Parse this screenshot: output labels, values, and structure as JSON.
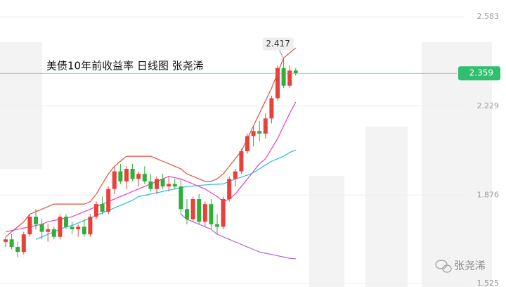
{
  "chart_data": {
    "type": "candlestick",
    "title": "美债10年前收益率  日线图  张尧浠",
    "watermark": "张尧浠",
    "ylim": [
      1.511,
      2.65
    ],
    "yticks": [
      1.525,
      1.876,
      2.229,
      2.583
    ],
    "grid": true,
    "up_color": "#e8413a",
    "down_color": "#2fae3c",
    "last_value": 2.359,
    "last_color": "#2fbf6f",
    "high_value": 2.417,
    "candles": [
      [
        1.69,
        1.71,
        1.67,
        1.7
      ],
      [
        1.7,
        1.72,
        1.66,
        1.67
      ],
      [
        1.67,
        1.69,
        1.63,
        1.65
      ],
      [
        1.65,
        1.73,
        1.64,
        1.72
      ],
      [
        1.72,
        1.8,
        1.71,
        1.79
      ],
      [
        1.79,
        1.82,
        1.74,
        1.76
      ],
      [
        1.76,
        1.78,
        1.7,
        1.73
      ],
      [
        1.73,
        1.76,
        1.69,
        1.74
      ],
      [
        1.74,
        1.75,
        1.7,
        1.71
      ],
      [
        1.71,
        1.8,
        1.7,
        1.79
      ],
      [
        1.79,
        1.8,
        1.74,
        1.75
      ],
      [
        1.75,
        1.77,
        1.72,
        1.74
      ],
      [
        1.74,
        1.76,
        1.71,
        1.75
      ],
      [
        1.75,
        1.78,
        1.71,
        1.72
      ],
      [
        1.72,
        1.8,
        1.71,
        1.79
      ],
      [
        1.79,
        1.85,
        1.78,
        1.84
      ],
      [
        1.84,
        1.87,
        1.8,
        1.81
      ],
      [
        1.81,
        1.91,
        1.8,
        1.9
      ],
      [
        1.9,
        1.99,
        1.88,
        1.97
      ],
      [
        1.97,
        2.0,
        1.92,
        1.93
      ],
      [
        1.93,
        1.99,
        1.9,
        1.98
      ],
      [
        1.98,
        2.0,
        1.93,
        1.94
      ],
      [
        1.94,
        1.97,
        1.91,
        1.96
      ],
      [
        1.96,
        1.99,
        1.92,
        1.93
      ],
      [
        1.93,
        1.96,
        1.89,
        1.9
      ],
      [
        1.9,
        1.95,
        1.88,
        1.94
      ],
      [
        1.94,
        1.96,
        1.9,
        1.91
      ],
      [
        1.91,
        1.95,
        1.89,
        1.92
      ],
      [
        1.92,
        1.94,
        1.9,
        1.91
      ],
      [
        1.91,
        1.94,
        1.8,
        1.82
      ],
      [
        1.82,
        1.86,
        1.76,
        1.78
      ],
      [
        1.78,
        1.87,
        1.77,
        1.86
      ],
      [
        1.86,
        1.88,
        1.76,
        1.77
      ],
      [
        1.77,
        1.85,
        1.75,
        1.84
      ],
      [
        1.84,
        1.86,
        1.74,
        1.76
      ],
      [
        1.76,
        1.8,
        1.72,
        1.75
      ],
      [
        1.75,
        1.87,
        1.74,
        1.86
      ],
      [
        1.86,
        1.95,
        1.85,
        1.94
      ],
      [
        1.94,
        1.98,
        1.91,
        1.97
      ],
      [
        1.97,
        2.06,
        1.96,
        2.05
      ],
      [
        2.05,
        2.12,
        2.04,
        2.11
      ],
      [
        2.11,
        2.15,
        2.07,
        2.13
      ],
      [
        2.13,
        2.17,
        2.09,
        2.12
      ],
      [
        2.12,
        2.2,
        2.1,
        2.18
      ],
      [
        2.18,
        2.27,
        2.16,
        2.26
      ],
      [
        2.26,
        2.39,
        2.25,
        2.38
      ],
      [
        2.38,
        2.417,
        2.3,
        2.31
      ],
      [
        2.31,
        2.39,
        2.3,
        2.37
      ],
      [
        2.37,
        2.38,
        2.35,
        2.359
      ]
    ],
    "lines": [
      {
        "color": "#e0503c",
        "values": [
          1.71,
          1.73,
          1.75,
          1.77,
          1.8,
          1.81,
          1.82,
          1.83,
          1.84,
          1.84,
          1.84,
          1.84,
          1.84,
          1.84,
          1.85,
          1.88,
          1.92,
          1.96,
          1.99,
          2.01,
          2.03,
          2.03,
          2.03,
          2.03,
          2.03,
          2.02,
          2.01,
          2.0,
          1.99,
          1.98,
          1.96,
          1.95,
          1.94,
          1.93,
          1.93,
          1.94,
          1.96,
          1.99,
          2.02,
          2.05,
          2.1,
          2.15,
          2.2,
          2.25,
          2.3,
          2.36,
          2.42,
          2.44,
          2.46
        ]
      },
      {
        "color": "#e040d0",
        "values": [
          1.73,
          1.735,
          1.74,
          1.745,
          1.75,
          1.755,
          1.76,
          1.77,
          1.775,
          1.78,
          1.785,
          1.79,
          1.8,
          1.81,
          1.82,
          1.83,
          1.84,
          1.85,
          1.86,
          1.87,
          1.88,
          1.89,
          1.9,
          1.91,
          1.92,
          1.93,
          1.94,
          1.95,
          1.945,
          1.94,
          1.93,
          1.92,
          1.91,
          1.9,
          1.885,
          1.87,
          1.85,
          1.86,
          1.88,
          1.91,
          1.94,
          1.97,
          2.0,
          2.02,
          2.06,
          2.1,
          2.15,
          2.2,
          2.245
        ]
      },
      {
        "color": "#2bb8e8",
        "values": [
          null,
          null,
          null,
          null,
          null,
          1.7,
          1.71,
          1.72,
          1.73,
          1.74,
          1.75,
          1.755,
          1.765,
          1.775,
          1.785,
          1.795,
          1.805,
          1.815,
          1.825,
          1.835,
          1.845,
          1.855,
          1.87,
          1.875,
          1.88,
          1.885,
          1.89,
          1.895,
          1.9,
          1.905,
          1.91,
          1.912,
          1.914,
          1.916,
          1.918,
          1.919,
          1.92,
          1.93,
          1.94,
          1.947,
          1.955,
          1.965,
          1.98,
          1.995,
          2.01,
          2.02,
          2.03,
          2.045,
          2.055
        ]
      },
      {
        "color": "#b060e0",
        "values": [
          null,
          null,
          null,
          null,
          null,
          null,
          null,
          null,
          null,
          null,
          null,
          null,
          null,
          null,
          null,
          null,
          null,
          null,
          null,
          null,
          null,
          null,
          null,
          null,
          null,
          null,
          null,
          null,
          null,
          1.8,
          1.78,
          1.77,
          1.76,
          1.75,
          1.74,
          1.72,
          1.71,
          1.7,
          1.69,
          1.68,
          1.67,
          1.66,
          1.65,
          1.645,
          1.64,
          1.635,
          1.63,
          1.625,
          1.623
        ]
      }
    ]
  }
}
